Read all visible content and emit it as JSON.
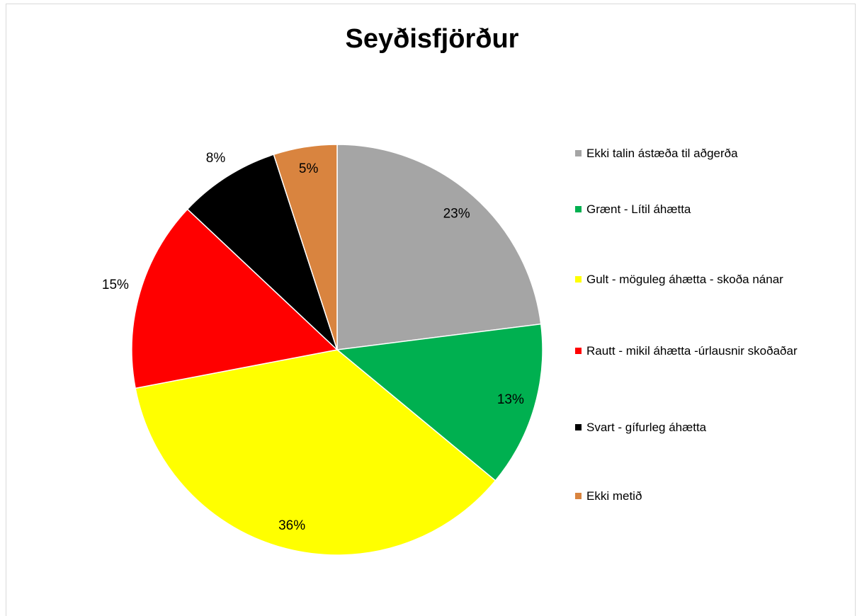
{
  "chart_data": {
    "type": "pie",
    "title": "Seyðisfjörður",
    "categories": [
      "Ekki talin ástæða til aðgerða",
      "Grænt - Lítil áhætta",
      "Gult - möguleg áhætta - skoða nánar",
      "Rautt - mikil áhætta -úrlausnir skoðaðar",
      "Svart - gífurleg áhætta",
      "Ekki metið"
    ],
    "values": [
      23,
      13,
      36,
      15,
      8,
      5
    ],
    "value_labels": [
      "23%",
      "13%",
      "36%",
      "15%",
      "8%",
      "5%"
    ],
    "colors": [
      "#a5a5a5",
      "#00b050",
      "#ffff00",
      "#ff0000",
      "#000000",
      "#d9843f"
    ],
    "legend": "right"
  }
}
